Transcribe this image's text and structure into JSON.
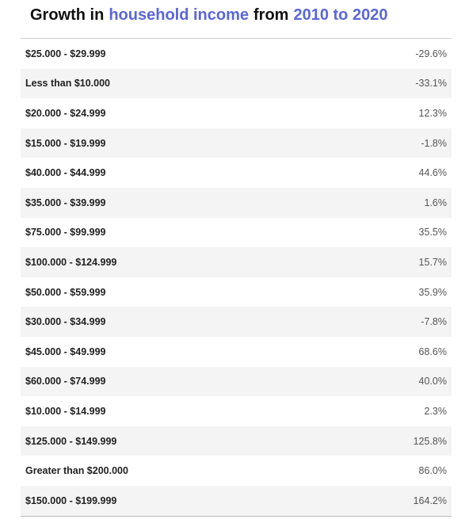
{
  "title": [
    "Growth in",
    "household income",
    "from",
    "2010 to 2020"
  ],
  "table": {
    "rows": [
      [
        "$25.000 - $29.999",
        "-29.6%"
      ],
      [
        "Less than $10.000",
        "-33.1%"
      ],
      [
        "$20.000 - $24.999",
        "12.3%"
      ],
      [
        "$15.000 - $19.999",
        "-1.8%"
      ],
      [
        "$40.000 - $44.999",
        "44.6%"
      ],
      [
        "$35.000 - $39.999",
        "1.6%"
      ],
      [
        "$75.000 - $99.999",
        "35.5%"
      ],
      [
        "$100.000 - $124.999",
        "15.7%"
      ],
      [
        "$50.000 - $59.999",
        "35.9%"
      ],
      [
        "$30.000 - $34.999",
        "-7.8%"
      ],
      [
        "$45.000 - $49.999",
        "68.6%"
      ],
      [
        "$60.000 - $74.999",
        "40.0%"
      ],
      [
        "$10.000 - $14.999",
        "2.3%"
      ],
      [
        "$125.000 - $149.999",
        "125.8%"
      ],
      [
        "Greater than $200.000",
        "86.0%"
      ],
      [
        "$150.000 - $199.999",
        "164.2%"
      ]
    ]
  }
}
